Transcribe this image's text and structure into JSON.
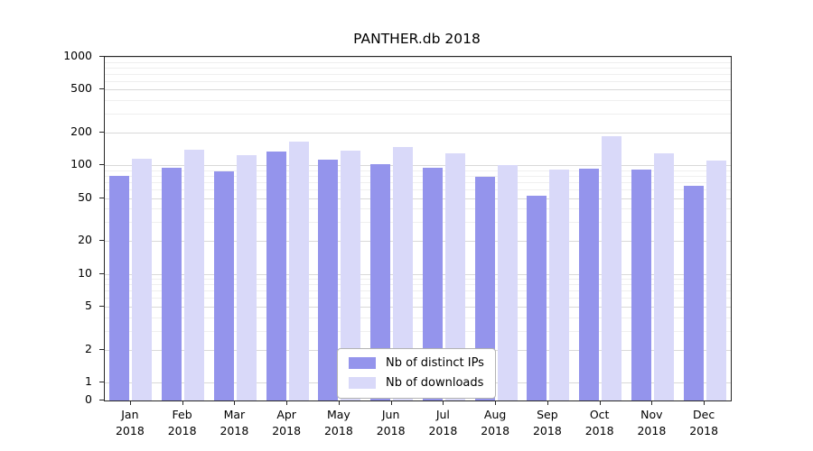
{
  "chart_data": {
    "type": "bar",
    "title": "PANTHER.db 2018",
    "categories": [
      "Jan 2018",
      "Feb 2018",
      "Mar 2018",
      "Apr 2018",
      "May 2018",
      "Jun 2018",
      "Jul 2018",
      "Aug 2018",
      "Sep 2018",
      "Oct 2018",
      "Nov 2018",
      "Dec 2018"
    ],
    "series": [
      {
        "name": "Nb of distinct IPs",
        "color": "#9494ec",
        "values": [
          80,
          95,
          88,
          135,
          112,
          102,
          95,
          78,
          53,
          93,
          92,
          65
        ]
      },
      {
        "name": "Nb of downloads",
        "color": "#d9d9f9",
        "values": [
          115,
          140,
          125,
          165,
          138,
          148,
          130,
          100,
          92,
          185,
          130,
          110
        ]
      }
    ],
    "yscale": "symlog",
    "ylim": [
      0,
      1000
    ],
    "yticks": [
      0,
      1,
      2,
      5,
      10,
      20,
      50,
      100,
      200,
      500,
      1000
    ],
    "minor_yticks": [
      3,
      4,
      6,
      7,
      8,
      9,
      30,
      40,
      60,
      70,
      80,
      90,
      300,
      400,
      600,
      700,
      800,
      900
    ],
    "grid": true,
    "legend_position": "lower center",
    "xlabel": "",
    "ylabel": ""
  }
}
